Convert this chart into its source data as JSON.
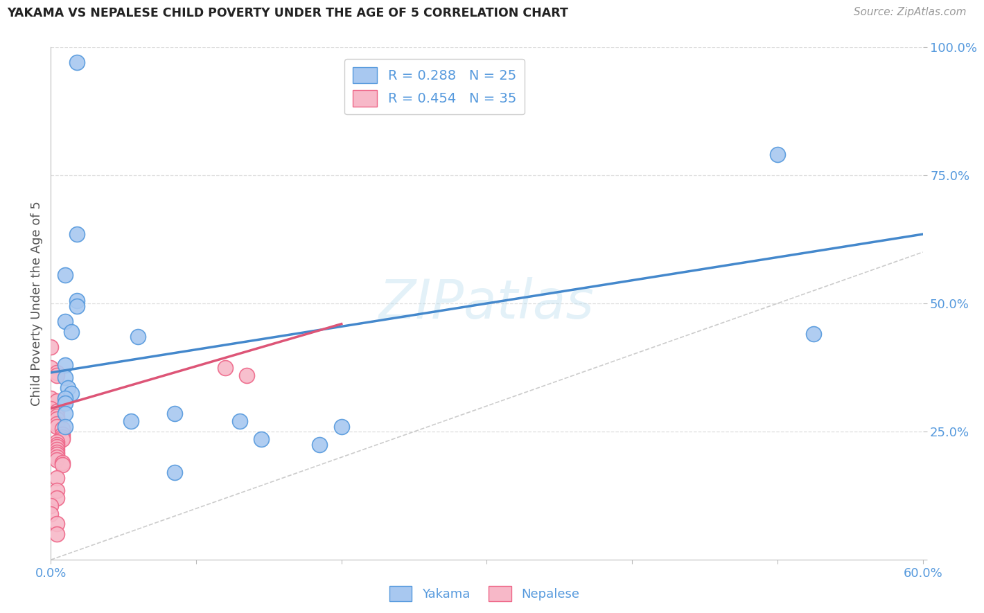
{
  "title": "YAKAMA VS NEPALESE CHILD POVERTY UNDER THE AGE OF 5 CORRELATION CHART",
  "source": "Source: ZipAtlas.com",
  "ylabel": "Child Poverty Under the Age of 5",
  "watermark": "ZIPatlas",
  "yakama_R": 0.288,
  "yakama_N": 25,
  "nepalese_R": 0.454,
  "nepalese_N": 35,
  "yakama_color": "#a8c8f0",
  "nepalese_color": "#f7b8c8",
  "yakama_edge_color": "#5599dd",
  "nepalese_edge_color": "#ee6688",
  "yakama_line_color": "#4488cc",
  "nepalese_line_color": "#dd5577",
  "diagonal_color": "#cccccc",
  "x_min": 0.0,
  "x_max": 0.6,
  "y_min": 0.0,
  "y_max": 1.0,
  "x_ticks": [
    0.0,
    0.1,
    0.2,
    0.3,
    0.4,
    0.5,
    0.6
  ],
  "y_ticks": [
    0.0,
    0.25,
    0.5,
    0.75,
    1.0
  ],
  "x_tick_labels": [
    "0.0%",
    "",
    "",
    "",
    "",
    "",
    "60.0%"
  ],
  "y_tick_labels": [
    "",
    "25.0%",
    "50.0%",
    "75.0%",
    "100.0%"
  ],
  "background_color": "#ffffff",
  "grid_color": "#dddddd",
  "title_color": "#222222",
  "tick_color": "#5599dd",
  "yakama_points": [
    [
      0.018,
      0.97
    ],
    [
      0.018,
      0.635
    ],
    [
      0.01,
      0.555
    ],
    [
      0.018,
      0.505
    ],
    [
      0.018,
      0.495
    ],
    [
      0.01,
      0.465
    ],
    [
      0.014,
      0.445
    ],
    [
      0.06,
      0.435
    ],
    [
      0.01,
      0.38
    ],
    [
      0.01,
      0.355
    ],
    [
      0.012,
      0.335
    ],
    [
      0.014,
      0.325
    ],
    [
      0.01,
      0.315
    ],
    [
      0.01,
      0.305
    ],
    [
      0.01,
      0.285
    ],
    [
      0.085,
      0.285
    ],
    [
      0.055,
      0.27
    ],
    [
      0.13,
      0.27
    ],
    [
      0.01,
      0.26
    ],
    [
      0.2,
      0.26
    ],
    [
      0.145,
      0.235
    ],
    [
      0.185,
      0.225
    ],
    [
      0.085,
      0.17
    ],
    [
      0.5,
      0.79
    ],
    [
      0.525,
      0.44
    ]
  ],
  "nepalese_points": [
    [
      0.0,
      0.415
    ],
    [
      0.0,
      0.375
    ],
    [
      0.004,
      0.365
    ],
    [
      0.004,
      0.36
    ],
    [
      0.0,
      0.315
    ],
    [
      0.004,
      0.31
    ],
    [
      0.0,
      0.295
    ],
    [
      0.004,
      0.29
    ],
    [
      0.004,
      0.28
    ],
    [
      0.004,
      0.275
    ],
    [
      0.004,
      0.265
    ],
    [
      0.004,
      0.26
    ],
    [
      0.008,
      0.255
    ],
    [
      0.008,
      0.245
    ],
    [
      0.008,
      0.24
    ],
    [
      0.008,
      0.235
    ],
    [
      0.004,
      0.23
    ],
    [
      0.004,
      0.225
    ],
    [
      0.004,
      0.22
    ],
    [
      0.004,
      0.215
    ],
    [
      0.004,
      0.21
    ],
    [
      0.004,
      0.205
    ],
    [
      0.004,
      0.2
    ],
    [
      0.004,
      0.195
    ],
    [
      0.008,
      0.19
    ],
    [
      0.008,
      0.185
    ],
    [
      0.004,
      0.16
    ],
    [
      0.004,
      0.135
    ],
    [
      0.004,
      0.12
    ],
    [
      0.0,
      0.105
    ],
    [
      0.0,
      0.09
    ],
    [
      0.004,
      0.07
    ],
    [
      0.004,
      0.05
    ],
    [
      0.12,
      0.375
    ],
    [
      0.135,
      0.36
    ]
  ],
  "yakama_line_x": [
    0.0,
    0.6
  ],
  "yakama_line_y": [
    0.365,
    0.635
  ],
  "nepalese_line_x": [
    0.0,
    0.2
  ],
  "nepalese_line_y": [
    0.295,
    0.46
  ]
}
